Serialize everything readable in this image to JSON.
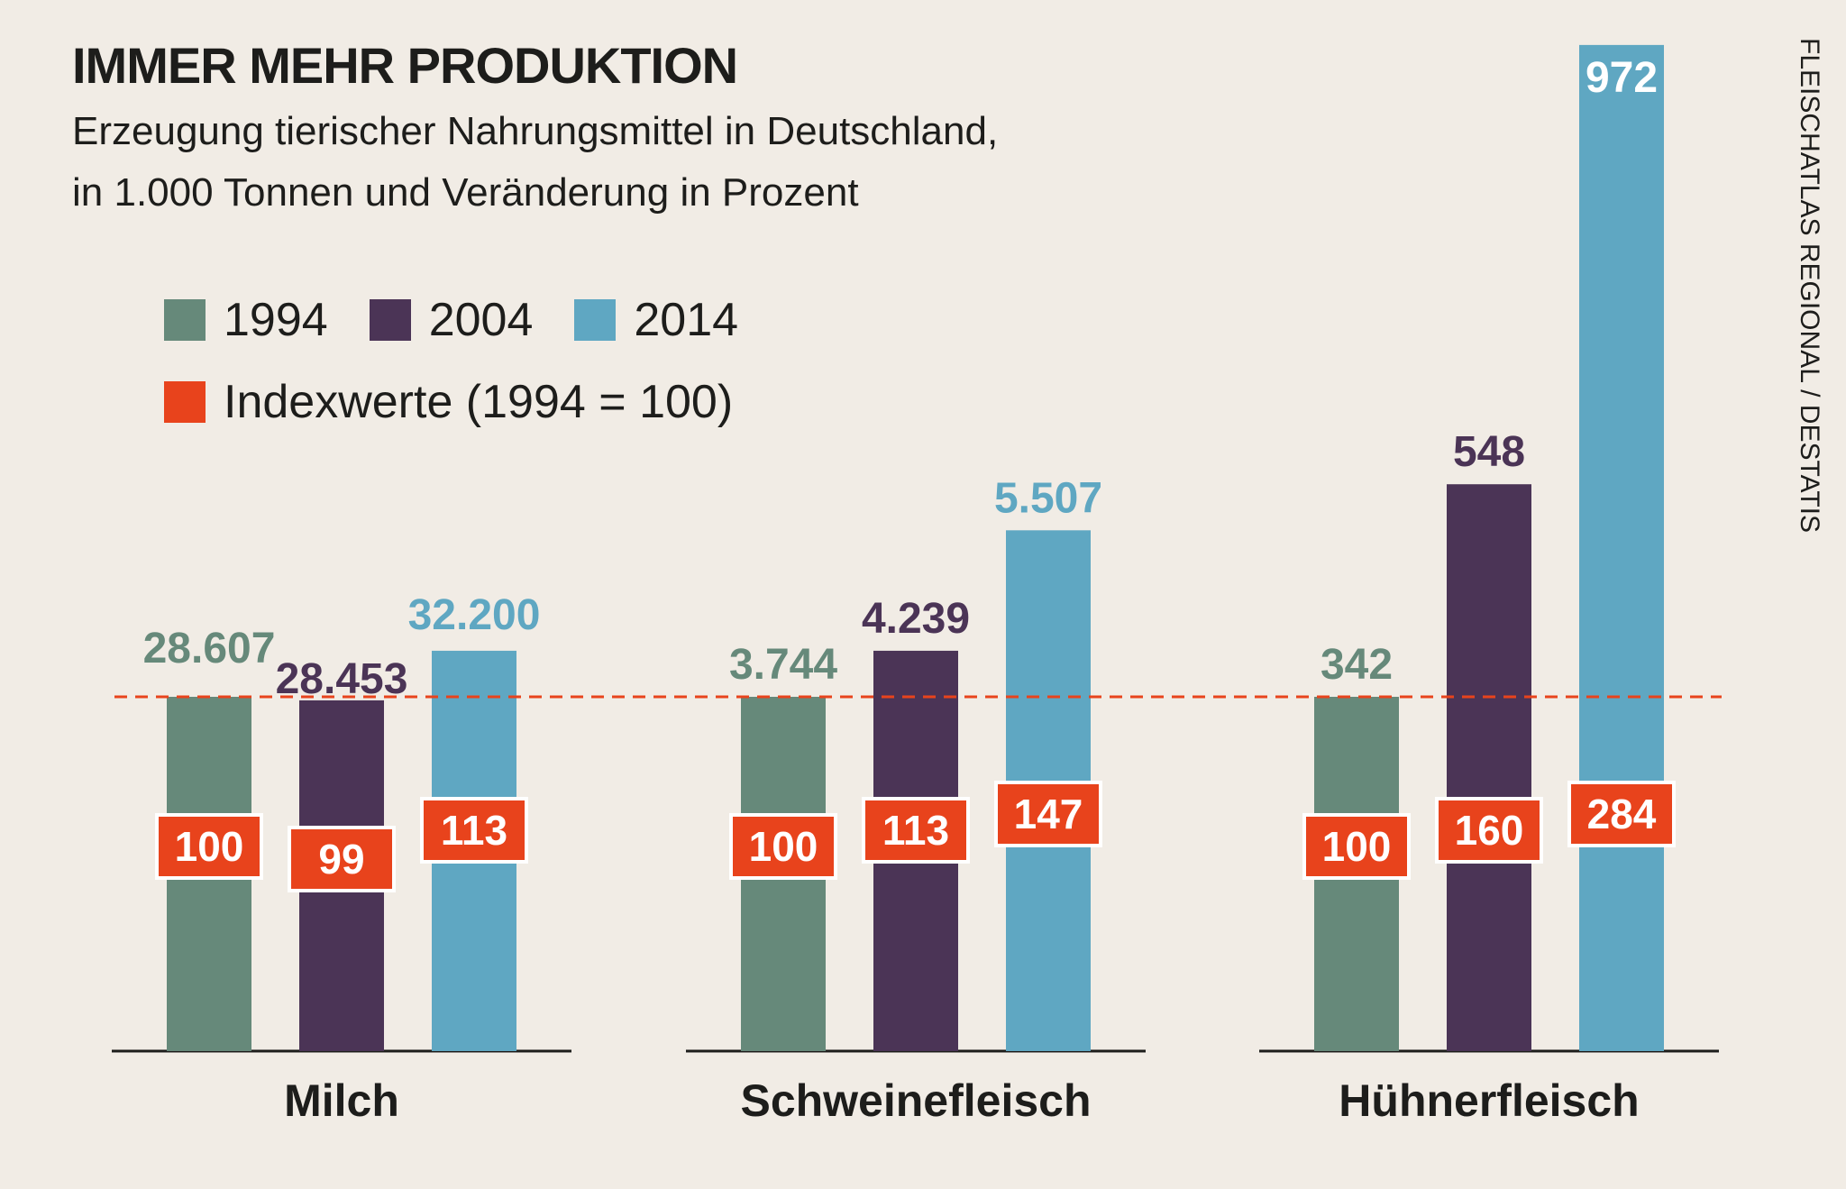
{
  "header": {
    "title": "IMMER MEHR PRODUKTION",
    "subtitle_line1": "Erzeugung tierischer Nahrungsmittel in Deutschland,",
    "subtitle_line2": "in 1.000 Tonnen und Veränderung in Prozent"
  },
  "legend": {
    "items": [
      {
        "label": "1994",
        "color": "#66897a"
      },
      {
        "label": "2004",
        "color": "#4b3456"
      },
      {
        "label": "2014",
        "color": "#5fa7c2"
      }
    ],
    "index_label": "Indexwerte (1994 = 100)",
    "index_color": "#e8431c"
  },
  "source": "FLEISCHATLAS REGIONAL / DESTATIS",
  "chart_data": {
    "type": "bar",
    "title": "IMMER MEHR PRODUKTION",
    "subtitle": "Erzeugung tierischer Nahrungsmittel in Deutschland, in 1.000 Tonnen und Veränderung in Prozent",
    "categories": [
      "Milch",
      "Schweinefleisch",
      "Hühnerfleisch"
    ],
    "series": [
      {
        "name": "1994",
        "color": "#66897a",
        "values": [
          28607,
          3744,
          342
        ],
        "labels": [
          "28.607",
          "3.744",
          "342"
        ],
        "index": [
          100,
          100,
          100
        ]
      },
      {
        "name": "2004",
        "color": "#4b3456",
        "values": [
          28453,
          4239,
          548
        ],
        "labels": [
          "28.453",
          "4.239",
          "548"
        ],
        "index": [
          99,
          113,
          160
        ]
      },
      {
        "name": "2014",
        "color": "#5fa7c2",
        "values": [
          32200,
          5507,
          972
        ],
        "labels": [
          "32.200",
          "5.507",
          "972"
        ],
        "index": [
          113,
          147,
          284
        ]
      }
    ],
    "index_baseline": 100,
    "index_color": "#e8431c",
    "note": "Bar heights are proportional to the index value (1994 = 100) within each group."
  }
}
